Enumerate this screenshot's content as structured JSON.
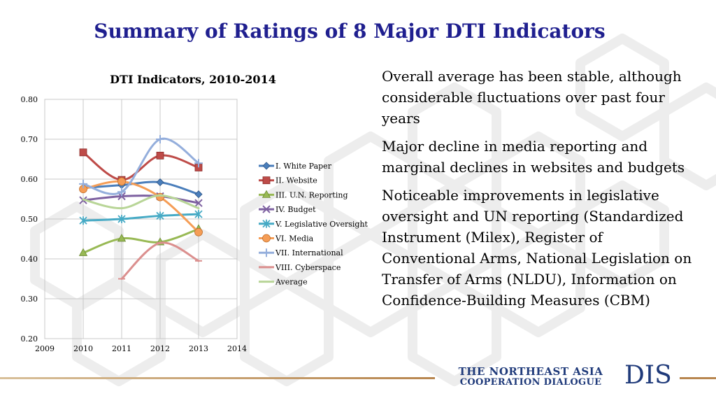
{
  "slide": {
    "title": "Summary of Ratings of 8 Major DTI Indicators",
    "bullets": [
      "Overall average has been stable, although considerable fluctuations over past four years",
      "Major decline in media reporting and marginal declines in websites and budgets",
      "Noticeable improvements in legislative oversight and UN reporting (Standardized Instrument (Milex), Register of Conventional Arms, National Legislation on Transfer of Arms (NLDU), Information on Confidence-Building Measures (CBM)"
    ],
    "org_line1": "THE NORTHEAST ASIA",
    "org_line2": "COOPERATION DIALOGUE",
    "org_abbr": "DIS"
  },
  "chart_data": {
    "type": "line",
    "title": "DTI Indicators, 2010-2014",
    "xlim": [
      2009,
      2014
    ],
    "ylim": [
      0.2,
      0.8
    ],
    "x_ticks": [
      "2009",
      "2010",
      "2011",
      "2012",
      "2013",
      "2014"
    ],
    "y_ticks": [
      "0.20",
      "0.30",
      "0.40",
      "0.50",
      "0.60",
      "0.70",
      "0.80"
    ],
    "grid": true,
    "legend_position": "right",
    "smooth": true,
    "series": [
      {
        "name": "I. White Paper",
        "color": "#4a7ebb",
        "marker": "diamond",
        "x": [
          2010,
          2011,
          2012,
          2013
        ],
        "values": [
          0.578,
          0.585,
          0.592,
          0.562
        ]
      },
      {
        "name": "II. Website",
        "color": "#be4b48",
        "marker": "square",
        "x": [
          2010,
          2011,
          2012,
          2013
        ],
        "values": [
          0.667,
          0.598,
          0.659,
          0.629
        ]
      },
      {
        "name": "III. U.N. Reporting",
        "color": "#98b954",
        "marker": "triangle",
        "x": [
          2010,
          2011,
          2012,
          2013
        ],
        "values": [
          0.415,
          0.451,
          0.442,
          0.475
        ]
      },
      {
        "name": "IV. Budget",
        "color": "#7d60a0",
        "marker": "x",
        "x": [
          2010,
          2011,
          2012,
          2013
        ],
        "values": [
          0.547,
          0.557,
          0.557,
          0.54
        ]
      },
      {
        "name": "V. Legislative Oversight",
        "color": "#46aac5",
        "marker": "asterisk",
        "x": [
          2010,
          2011,
          2012,
          2013
        ],
        "values": [
          0.496,
          0.5,
          0.508,
          0.512
        ]
      },
      {
        "name": "VI. Media",
        "color": "#f59d56",
        "marker": "circle",
        "x": [
          2010,
          2011,
          2012,
          2013
        ],
        "values": [
          0.575,
          0.594,
          0.555,
          0.467
        ]
      },
      {
        "name": "VII. International",
        "color": "#94aedc",
        "marker": "plus",
        "x": [
          2010,
          2011,
          2012,
          2013
        ],
        "values": [
          0.588,
          0.568,
          0.7,
          0.64
        ]
      },
      {
        "name": "VIII. Cyberspace",
        "color": "#db8f8e",
        "marker": "dash",
        "x": [
          2011,
          2012,
          2013
        ],
        "values": [
          0.35,
          0.44,
          0.395
        ]
      },
      {
        "name": "Average",
        "color": "#b8d597",
        "marker": "none",
        "x": [
          2010,
          2011,
          2012,
          2013
        ],
        "values": [
          0.549,
          0.527,
          0.559,
          0.527
        ]
      }
    ]
  }
}
